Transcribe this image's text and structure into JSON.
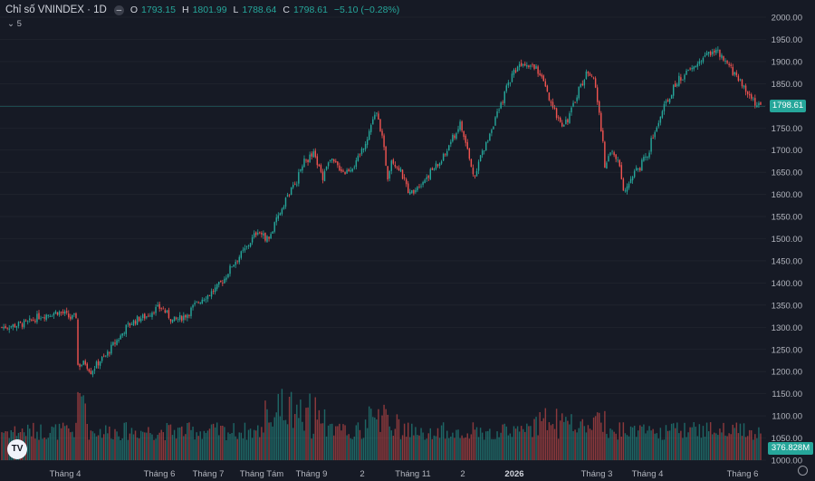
{
  "legend": {
    "title": "Chỉ số VNINDEX · 1D",
    "toggle_glyph": "–",
    "o_label": "O",
    "o_value": "1793.15",
    "h_label": "H",
    "h_value": "1801.99",
    "l_label": "L",
    "l_value": "1788.64",
    "c_label": "C",
    "c_value": "1798.61",
    "change": "−5.10 (−0.28%)"
  },
  "indicators_count": "5",
  "last_price_tag": "1798.61",
  "volume_tag": "376.828M",
  "logo_text": "TV",
  "colors": {
    "up": "#26a69a",
    "down": "#ef5350",
    "background": "#161a25",
    "grid": "#242832",
    "axis_text": "#b2b5be"
  },
  "chart_data": {
    "type": "candlestick",
    "title": "Chỉ số VNINDEX · 1D",
    "yticks": [
      "1000.00",
      "1050.00",
      "1100.00",
      "1150.00",
      "1200.00",
      "1250.00",
      "1300.00",
      "1350.00",
      "1400.00",
      "1450.00",
      "1500.00",
      "1550.00",
      "1600.00",
      "1650.00",
      "1700.00",
      "1750.00",
      "1800.00",
      "1850.00",
      "1900.00",
      "1950.00",
      "2000.00"
    ],
    "ylim": [
      1000,
      2000
    ],
    "xticks": [
      "Tháng 4",
      "Tháng 6",
      "Tháng 7",
      "Tháng Tám",
      "Tháng 9",
      "2",
      "Tháng 11",
      "2",
      "2026",
      "Tháng 3",
      "Tháng 4",
      "Tháng 6"
    ],
    "last_close": 1798.61,
    "close_path": [
      [
        0,
        1300
      ],
      [
        8,
        1305
      ],
      [
        14,
        1310
      ],
      [
        20,
        1325
      ],
      [
        26,
        1330
      ],
      [
        30,
        1335
      ],
      [
        34,
        1330
      ],
      [
        37,
        1320
      ],
      [
        40,
        1325
      ],
      [
        41,
        1215
      ],
      [
        42,
        1215
      ],
      [
        45,
        1220
      ],
      [
        48,
        1200
      ],
      [
        50,
        1210
      ],
      [
        53,
        1225
      ],
      [
        56,
        1235
      ],
      [
        60,
        1260
      ],
      [
        64,
        1280
      ],
      [
        67,
        1300
      ],
      [
        70,
        1310
      ],
      [
        74,
        1320
      ],
      [
        78,
        1325
      ],
      [
        82,
        1340
      ],
      [
        86,
        1345
      ],
      [
        89,
        1330
      ],
      [
        92,
        1315
      ],
      [
        96,
        1320
      ],
      [
        100,
        1330
      ],
      [
        104,
        1350
      ],
      [
        108,
        1365
      ],
      [
        112,
        1375
      ],
      [
        116,
        1390
      ],
      [
        120,
        1410
      ],
      [
        124,
        1440
      ],
      [
        128,
        1460
      ],
      [
        132,
        1480
      ],
      [
        135,
        1500
      ],
      [
        138,
        1520
      ],
      [
        141,
        1505
      ],
      [
        144,
        1500
      ],
      [
        147,
        1530
      ],
      [
        150,
        1560
      ],
      [
        153,
        1590
      ],
      [
        156,
        1610
      ],
      [
        159,
        1630
      ],
      [
        162,
        1670
      ],
      [
        165,
        1680
      ],
      [
        168,
        1690
      ],
      [
        171,
        1660
      ],
      [
        173,
        1640
      ],
      [
        176,
        1680
      ],
      [
        179,
        1670
      ],
      [
        182,
        1660
      ],
      [
        185,
        1650
      ],
      [
        188,
        1660
      ],
      [
        191,
        1670
      ],
      [
        194,
        1700
      ],
      [
        197,
        1730
      ],
      [
        200,
        1770
      ],
      [
        202,
        1780
      ],
      [
        204,
        1750
      ],
      [
        206,
        1700
      ],
      [
        208,
        1640
      ],
      [
        210,
        1680
      ],
      [
        212,
        1670
      ],
      [
        214,
        1660
      ],
      [
        216,
        1640
      ],
      [
        218,
        1620
      ],
      [
        220,
        1600
      ],
      [
        222,
        1610
      ],
      [
        224,
        1620
      ],
      [
        227,
        1630
      ],
      [
        230,
        1645
      ],
      [
        233,
        1660
      ],
      [
        236,
        1670
      ],
      [
        239,
        1690
      ],
      [
        242,
        1720
      ],
      [
        245,
        1740
      ],
      [
        247,
        1760
      ],
      [
        249,
        1730
      ],
      [
        251,
        1700
      ],
      [
        253,
        1660
      ],
      [
        255,
        1640
      ],
      [
        257,
        1680
      ],
      [
        260,
        1700
      ],
      [
        263,
        1740
      ],
      [
        266,
        1770
      ],
      [
        269,
        1800
      ],
      [
        272,
        1840
      ],
      [
        275,
        1870
      ],
      [
        278,
        1890
      ],
      [
        281,
        1900
      ],
      [
        284,
        1895
      ],
      [
        287,
        1890
      ],
      [
        290,
        1870
      ],
      [
        293,
        1840
      ],
      [
        296,
        1800
      ],
      [
        299,
        1780
      ],
      [
        302,
        1760
      ],
      [
        305,
        1770
      ],
      [
        308,
        1800
      ],
      [
        311,
        1840
      ],
      [
        314,
        1860
      ],
      [
        316,
        1880
      ],
      [
        318,
        1870
      ],
      [
        320,
        1840
      ],
      [
        322,
        1780
      ],
      [
        324,
        1720
      ],
      [
        325,
        1660
      ],
      [
        328,
        1700
      ],
      [
        330,
        1690
      ],
      [
        332,
        1680
      ],
      [
        334,
        1640
      ],
      [
        335,
        1610
      ],
      [
        338,
        1630
      ],
      [
        341,
        1650
      ],
      [
        344,
        1660
      ],
      [
        346,
        1690
      ],
      [
        348,
        1680
      ],
      [
        350,
        1720
      ],
      [
        353,
        1750
      ],
      [
        356,
        1790
      ],
      [
        359,
        1810
      ],
      [
        362,
        1840
      ],
      [
        365,
        1860
      ],
      [
        368,
        1870
      ],
      [
        371,
        1880
      ],
      [
        374,
        1890
      ],
      [
        377,
        1905
      ],
      [
        380,
        1915
      ],
      [
        383,
        1925
      ],
      [
        386,
        1920
      ],
      [
        389,
        1900
      ],
      [
        392,
        1890
      ],
      [
        395,
        1870
      ],
      [
        398,
        1860
      ],
      [
        401,
        1830
      ],
      [
        404,
        1820
      ],
      [
        407,
        1800
      ],
      [
        409,
        1798.61
      ]
    ],
    "volume_scale_note": "relative",
    "volume_ylim": [
      0,
      1
    ]
  }
}
